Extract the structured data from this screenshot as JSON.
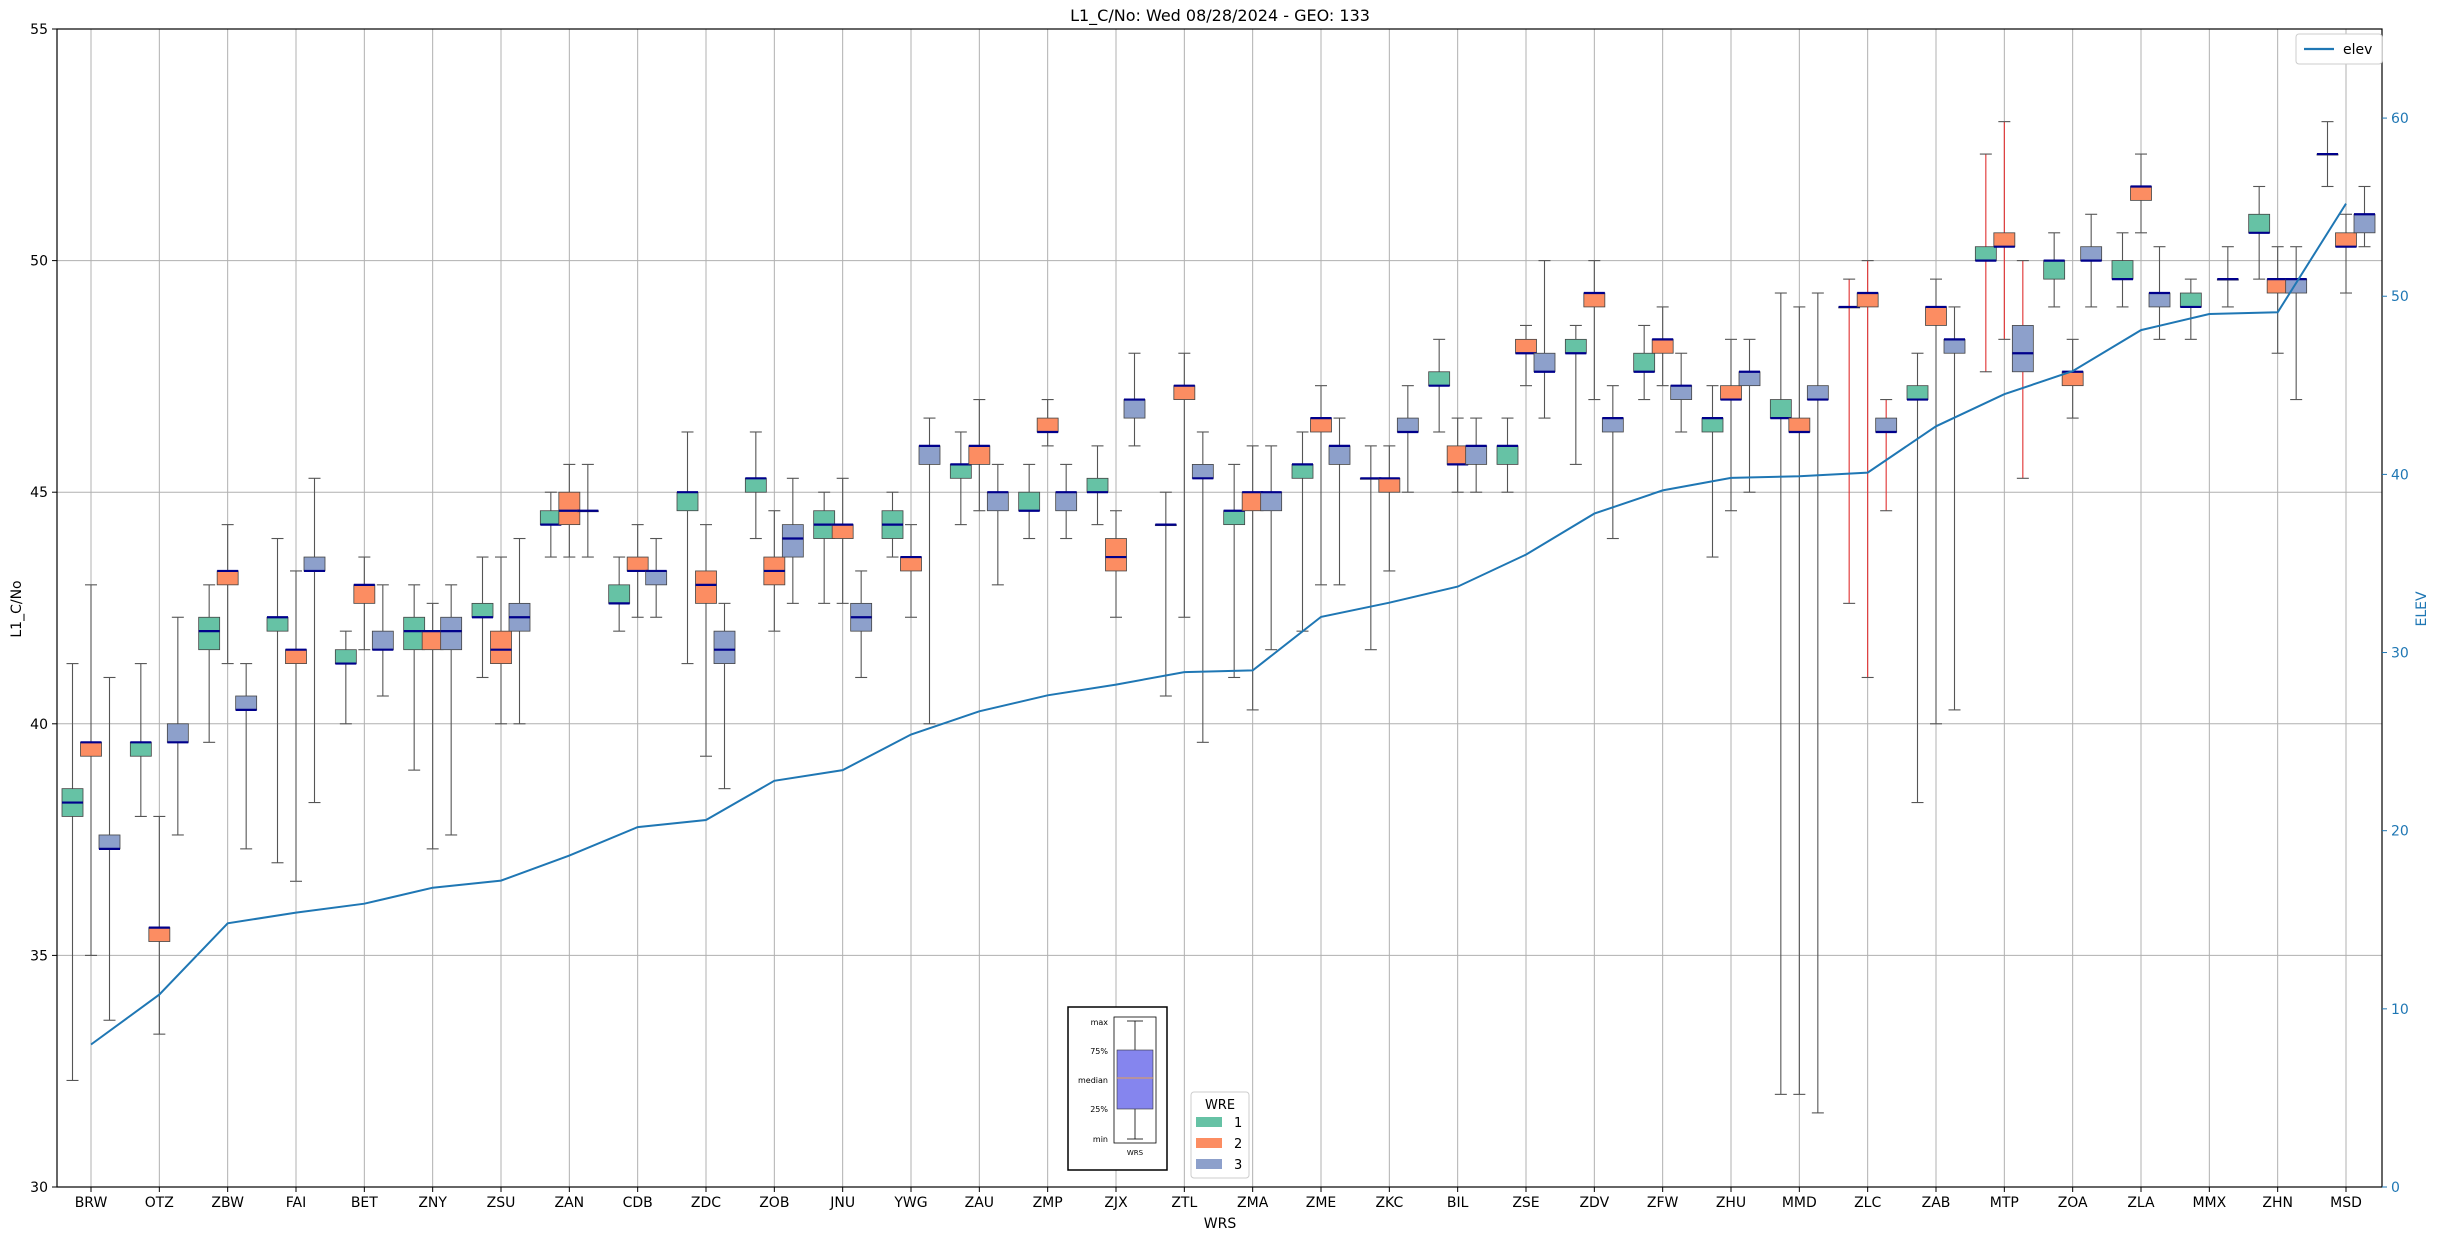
{
  "chart_data": {
    "type": "box",
    "title": "L1_C/No: Wed 08/28/2024 - GEO: 133",
    "xlabel": "WRS",
    "ylabel": "L1_C/No",
    "y2label": "ELEV",
    "ylim": [
      30,
      55
    ],
    "y2lim": [
      0,
      65
    ],
    "yticks": [
      30,
      35,
      40,
      45,
      50,
      55
    ],
    "y2ticks": [
      0,
      10,
      20,
      30,
      40,
      50,
      60
    ],
    "grid": true,
    "categories": [
      "BRW",
      "OTZ",
      "ZBW",
      "FAI",
      "BET",
      "ZNY",
      "ZSU",
      "ZAN",
      "CDB",
      "ZDC",
      "ZOB",
      "JNU",
      "YWG",
      "ZAU",
      "ZMP",
      "ZJX",
      "ZTL",
      "ZMA",
      "ZME",
      "ZKC",
      "BIL",
      "ZSE",
      "ZDV",
      "ZFW",
      "ZHU",
      "MMD",
      "ZLC",
      "ZAB",
      "MTP",
      "ZOA",
      "ZLA",
      "MMX",
      "ZHN",
      "MSD"
    ],
    "wre_colors": {
      "1": "#66c2a5",
      "2": "#fc8d62",
      "3": "#8da0cb"
    },
    "box_series": [
      {
        "wrs": "BRW",
        "wre": "1",
        "min": 32.3,
        "q1": 38.0,
        "median": 38.3,
        "q3": 38.6,
        "max": 41.3
      },
      {
        "wrs": "BRW",
        "wre": "2",
        "min": 35.0,
        "q1": 39.3,
        "median": 39.6,
        "q3": 39.6,
        "max": 43.0
      },
      {
        "wrs": "BRW",
        "wre": "3",
        "min": 33.6,
        "q1": 37.3,
        "median": 37.3,
        "q3": 37.6,
        "max": 41.0
      },
      {
        "wrs": "OTZ",
        "wre": "1",
        "min": 38.0,
        "q1": 39.3,
        "median": 39.6,
        "q3": 39.6,
        "max": 41.3
      },
      {
        "wrs": "OTZ",
        "wre": "2",
        "min": 33.3,
        "q1": 35.3,
        "median": 35.6,
        "q3": 35.6,
        "max": 38.0
      },
      {
        "wrs": "OTZ",
        "wre": "3",
        "min": 37.6,
        "q1": 39.6,
        "median": 39.6,
        "q3": 40.0,
        "max": 42.3
      },
      {
        "wrs": "ZBW",
        "wre": "1",
        "min": 39.6,
        "q1": 41.6,
        "median": 42.0,
        "q3": 42.3,
        "max": 43.0
      },
      {
        "wrs": "ZBW",
        "wre": "2",
        "min": 41.3,
        "q1": 43.0,
        "median": 43.3,
        "q3": 43.3,
        "max": 44.3
      },
      {
        "wrs": "ZBW",
        "wre": "3",
        "min": 37.3,
        "q1": 40.3,
        "median": 40.3,
        "q3": 40.6,
        "max": 41.3
      },
      {
        "wrs": "FAI",
        "wre": "1",
        "min": 37.0,
        "q1": 42.0,
        "median": 42.3,
        "q3": 42.3,
        "max": 44.0
      },
      {
        "wrs": "FAI",
        "wre": "2",
        "min": 36.6,
        "q1": 41.3,
        "median": 41.6,
        "q3": 41.6,
        "max": 43.3
      },
      {
        "wrs": "FAI",
        "wre": "3",
        "min": 38.3,
        "q1": 43.3,
        "median": 43.3,
        "q3": 43.6,
        "max": 45.3
      },
      {
        "wrs": "BET",
        "wre": "1",
        "min": 40.0,
        "q1": 41.3,
        "median": 41.3,
        "q3": 41.6,
        "max": 42.0
      },
      {
        "wrs": "BET",
        "wre": "2",
        "min": 41.6,
        "q1": 42.6,
        "median": 43.0,
        "q3": 43.0,
        "max": 43.6
      },
      {
        "wrs": "BET",
        "wre": "3",
        "min": 40.6,
        "q1": 41.6,
        "median": 41.6,
        "q3": 42.0,
        "max": 43.0
      },
      {
        "wrs": "ZNY",
        "wre": "1",
        "min": 39.0,
        "q1": 41.6,
        "median": 42.0,
        "q3": 42.3,
        "max": 43.0
      },
      {
        "wrs": "ZNY",
        "wre": "2",
        "min": 37.3,
        "q1": 41.6,
        "median": 42.0,
        "q3": 42.0,
        "max": 42.6
      },
      {
        "wrs": "ZNY",
        "wre": "3",
        "min": 37.6,
        "q1": 41.6,
        "median": 42.0,
        "q3": 42.3,
        "max": 43.0
      },
      {
        "wrs": "ZSU",
        "wre": "1",
        "min": 41.0,
        "q1": 42.3,
        "median": 42.3,
        "q3": 42.6,
        "max": 43.6
      },
      {
        "wrs": "ZSU",
        "wre": "2",
        "min": 40.0,
        "q1": 41.3,
        "median": 41.6,
        "q3": 42.0,
        "max": 43.6
      },
      {
        "wrs": "ZSU",
        "wre": "3",
        "min": 40.0,
        "q1": 42.0,
        "median": 42.3,
        "q3": 42.6,
        "max": 44.0
      },
      {
        "wrs": "ZAN",
        "wre": "1",
        "min": 43.6,
        "q1": 44.3,
        "median": 44.3,
        "q3": 44.6,
        "max": 45.0
      },
      {
        "wrs": "ZAN",
        "wre": "2",
        "min": 43.6,
        "q1": 44.3,
        "median": 44.6,
        "q3": 45.0,
        "max": 45.6
      },
      {
        "wrs": "ZAN",
        "wre": "3",
        "min": 43.6,
        "q1": 44.6,
        "median": 44.6,
        "q3": 44.6,
        "max": 45.6
      },
      {
        "wrs": "CDB",
        "wre": "1",
        "min": 42.0,
        "q1": 42.6,
        "median": 42.6,
        "q3": 43.0,
        "max": 43.6
      },
      {
        "wrs": "CDB",
        "wre": "2",
        "min": 42.3,
        "q1": 43.3,
        "median": 43.3,
        "q3": 43.6,
        "max": 44.3
      },
      {
        "wrs": "CDB",
        "wre": "3",
        "min": 42.3,
        "q1": 43.0,
        "median": 43.3,
        "q3": 43.3,
        "max": 44.0
      },
      {
        "wrs": "ZDC",
        "wre": "1",
        "min": 41.3,
        "q1": 44.6,
        "median": 45.0,
        "q3": 45.0,
        "max": 46.3
      },
      {
        "wrs": "ZDC",
        "wre": "2",
        "min": 39.3,
        "q1": 42.6,
        "median": 43.0,
        "q3": 43.3,
        "max": 44.3
      },
      {
        "wrs": "ZDC",
        "wre": "3",
        "min": 38.6,
        "q1": 41.3,
        "median": 41.6,
        "q3": 42.0,
        "max": 42.6
      },
      {
        "wrs": "ZOB",
        "wre": "1",
        "min": 44.0,
        "q1": 45.0,
        "median": 45.3,
        "q3": 45.3,
        "max": 46.3
      },
      {
        "wrs": "ZOB",
        "wre": "2",
        "min": 42.0,
        "q1": 43.0,
        "median": 43.3,
        "q3": 43.6,
        "max": 44.6
      },
      {
        "wrs": "ZOB",
        "wre": "3",
        "min": 42.6,
        "q1": 43.6,
        "median": 44.0,
        "q3": 44.3,
        "max": 45.3
      },
      {
        "wrs": "JNU",
        "wre": "1",
        "min": 42.6,
        "q1": 44.0,
        "median": 44.3,
        "q3": 44.6,
        "max": 45.0
      },
      {
        "wrs": "JNU",
        "wre": "2",
        "min": 42.6,
        "q1": 44.0,
        "median": 44.3,
        "q3": 44.3,
        "max": 45.3
      },
      {
        "wrs": "JNU",
        "wre": "3",
        "min": 41.0,
        "q1": 42.0,
        "median": 42.3,
        "q3": 42.6,
        "max": 43.3
      },
      {
        "wrs": "YWG",
        "wre": "1",
        "min": 43.6,
        "q1": 44.0,
        "median": 44.3,
        "q3": 44.6,
        "max": 45.0
      },
      {
        "wrs": "YWG",
        "wre": "2",
        "min": 42.3,
        "q1": 43.3,
        "median": 43.6,
        "q3": 43.6,
        "max": 44.3
      },
      {
        "wrs": "YWG",
        "wre": "3",
        "min": 40.0,
        "q1": 45.6,
        "median": 46.0,
        "q3": 46.0,
        "max": 46.6
      },
      {
        "wrs": "ZAU",
        "wre": "1",
        "min": 44.3,
        "q1": 45.3,
        "median": 45.6,
        "q3": 45.6,
        "max": 46.3
      },
      {
        "wrs": "ZAU",
        "wre": "2",
        "min": 44.6,
        "q1": 45.6,
        "median": 46.0,
        "q3": 46.0,
        "max": 47.0
      },
      {
        "wrs": "ZAU",
        "wre": "3",
        "min": 43.0,
        "q1": 44.6,
        "median": 45.0,
        "q3": 45.0,
        "max": 45.6
      },
      {
        "wrs": "ZMP",
        "wre": "1",
        "min": 44.0,
        "q1": 44.6,
        "median": 44.6,
        "q3": 45.0,
        "max": 45.6
      },
      {
        "wrs": "ZMP",
        "wre": "2",
        "min": 46.0,
        "q1": 46.3,
        "median": 46.3,
        "q3": 46.6,
        "max": 47.0
      },
      {
        "wrs": "ZMP",
        "wre": "3",
        "min": 44.0,
        "q1": 44.6,
        "median": 45.0,
        "q3": 45.0,
        "max": 45.6
      },
      {
        "wrs": "ZJX",
        "wre": "1",
        "min": 44.3,
        "q1": 45.0,
        "median": 45.0,
        "q3": 45.3,
        "max": 46.0
      },
      {
        "wrs": "ZJX",
        "wre": "2",
        "min": 42.3,
        "q1": 43.3,
        "median": 43.6,
        "q3": 44.0,
        "max": 44.6
      },
      {
        "wrs": "ZJX",
        "wre": "3",
        "min": 46.0,
        "q1": 46.6,
        "median": 47.0,
        "q3": 47.0,
        "max": 48.0
      },
      {
        "wrs": "ZTL",
        "wre": "1",
        "min": 40.6,
        "q1": 44.3,
        "median": 44.3,
        "q3": 44.3,
        "max": 45.0
      },
      {
        "wrs": "ZTL",
        "wre": "2",
        "min": 42.3,
        "q1": 47.0,
        "median": 47.3,
        "q3": 47.3,
        "max": 48.0
      },
      {
        "wrs": "ZTL",
        "wre": "3",
        "min": 39.6,
        "q1": 45.3,
        "median": 45.3,
        "q3": 45.6,
        "max": 46.3
      },
      {
        "wrs": "ZMA",
        "wre": "1",
        "min": 41.0,
        "q1": 44.3,
        "median": 44.6,
        "q3": 44.6,
        "max": 45.6
      },
      {
        "wrs": "ZMA",
        "wre": "2",
        "min": 40.3,
        "q1": 44.6,
        "median": 45.0,
        "q3": 45.0,
        "max": 46.0
      },
      {
        "wrs": "ZMA",
        "wre": "3",
        "min": 41.6,
        "q1": 44.6,
        "median": 45.0,
        "q3": 45.0,
        "max": 46.0
      },
      {
        "wrs": "ZME",
        "wre": "1",
        "min": 42.0,
        "q1": 45.3,
        "median": 45.6,
        "q3": 45.6,
        "max": 46.3
      },
      {
        "wrs": "ZME",
        "wre": "2",
        "min": 43.0,
        "q1": 46.3,
        "median": 46.6,
        "q3": 46.6,
        "max": 47.3
      },
      {
        "wrs": "ZME",
        "wre": "3",
        "min": 43.0,
        "q1": 45.6,
        "median": 46.0,
        "q3": 46.0,
        "max": 46.6
      },
      {
        "wrs": "ZKC",
        "wre": "1",
        "min": 41.6,
        "q1": 45.3,
        "median": 45.3,
        "q3": 45.3,
        "max": 46.0
      },
      {
        "wrs": "ZKC",
        "wre": "2",
        "min": 43.3,
        "q1": 45.0,
        "median": 45.3,
        "q3": 45.3,
        "max": 46.0
      },
      {
        "wrs": "ZKC",
        "wre": "3",
        "min": 45.0,
        "q1": 46.3,
        "median": 46.3,
        "q3": 46.6,
        "max": 47.3
      },
      {
        "wrs": "BIL",
        "wre": "1",
        "min": 46.3,
        "q1": 47.3,
        "median": 47.3,
        "q3": 47.6,
        "max": 48.3
      },
      {
        "wrs": "BIL",
        "wre": "2",
        "min": 45.0,
        "q1": 45.6,
        "median": 45.6,
        "q3": 46.0,
        "max": 46.6
      },
      {
        "wrs": "BIL",
        "wre": "3",
        "min": 45.0,
        "q1": 45.6,
        "median": 46.0,
        "q3": 46.0,
        "max": 46.6
      },
      {
        "wrs": "ZSE",
        "wre": "1",
        "min": 45.0,
        "q1": 45.6,
        "median": 46.0,
        "q3": 46.0,
        "max": 46.6
      },
      {
        "wrs": "ZSE",
        "wre": "2",
        "min": 47.3,
        "q1": 48.0,
        "median": 48.0,
        "q3": 48.3,
        "max": 48.6
      },
      {
        "wrs": "ZSE",
        "wre": "3",
        "min": 46.6,
        "q1": 47.6,
        "median": 47.6,
        "q3": 48.0,
        "max": 50.0
      },
      {
        "wrs": "ZDV",
        "wre": "1",
        "min": 45.6,
        "q1": 48.0,
        "median": 48.0,
        "q3": 48.3,
        "max": 48.6
      },
      {
        "wrs": "ZDV",
        "wre": "2",
        "min": 47.0,
        "q1": 49.0,
        "median": 49.3,
        "q3": 49.3,
        "max": 50.0
      },
      {
        "wrs": "ZDV",
        "wre": "3",
        "min": 44.0,
        "q1": 46.3,
        "median": 46.6,
        "q3": 46.6,
        "max": 47.3
      },
      {
        "wrs": "ZFW",
        "wre": "1",
        "min": 47.0,
        "q1": 47.6,
        "median": 47.6,
        "q3": 48.0,
        "max": 48.6
      },
      {
        "wrs": "ZFW",
        "wre": "2",
        "min": 47.3,
        "q1": 48.0,
        "median": 48.3,
        "q3": 48.3,
        "max": 49.0
      },
      {
        "wrs": "ZFW",
        "wre": "3",
        "min": 46.3,
        "q1": 47.0,
        "median": 47.3,
        "q3": 47.3,
        "max": 48.0
      },
      {
        "wrs": "ZHU",
        "wre": "1",
        "min": 43.6,
        "q1": 46.3,
        "median": 46.6,
        "q3": 46.6,
        "max": 47.3
      },
      {
        "wrs": "ZHU",
        "wre": "2",
        "min": 44.6,
        "q1": 47.0,
        "median": 47.0,
        "q3": 47.3,
        "max": 48.3
      },
      {
        "wrs": "ZHU",
        "wre": "3",
        "min": 45.0,
        "q1": 47.3,
        "median": 47.6,
        "q3": 47.6,
        "max": 48.3
      },
      {
        "wrs": "MMD",
        "wre": "1",
        "min": 32.0,
        "q1": 46.6,
        "median": 46.6,
        "q3": 47.0,
        "max": 49.3
      },
      {
        "wrs": "MMD",
        "wre": "2",
        "min": 32.0,
        "q1": 46.3,
        "median": 46.3,
        "q3": 46.6,
        "max": 49.0
      },
      {
        "wrs": "MMD",
        "wre": "3",
        "min": 31.6,
        "q1": 47.0,
        "median": 47.0,
        "q3": 47.3,
        "max": 49.3
      },
      {
        "wrs": "ZLC",
        "wre": "1",
        "min": 42.6,
        "q1": 49.0,
        "median": 49.0,
        "q3": 49.0,
        "max": 49.6
      },
      {
        "wrs": "ZLC",
        "wre": "2",
        "min": 41.0,
        "q1": 49.0,
        "median": 49.3,
        "q3": 49.3,
        "max": 50.0
      },
      {
        "wrs": "ZLC",
        "wre": "3",
        "min": 44.6,
        "q1": 46.3,
        "median": 46.3,
        "q3": 46.6,
        "max": 47.0
      },
      {
        "wrs": "ZAB",
        "wre": "1",
        "min": 38.3,
        "q1": 47.0,
        "median": 47.0,
        "q3": 47.3,
        "max": 48.0
      },
      {
        "wrs": "ZAB",
        "wre": "2",
        "min": 40.0,
        "q1": 48.6,
        "median": 49.0,
        "q3": 49.0,
        "max": 49.6
      },
      {
        "wrs": "ZAB",
        "wre": "3",
        "min": 40.3,
        "q1": 48.0,
        "median": 48.3,
        "q3": 48.3,
        "max": 49.0
      },
      {
        "wrs": "MTP",
        "wre": "1",
        "min": 47.6,
        "q1": 50.0,
        "median": 50.0,
        "q3": 50.3,
        "max": 52.3
      },
      {
        "wrs": "MTP",
        "wre": "2",
        "min": 48.3,
        "q1": 50.3,
        "median": 50.3,
        "q3": 50.6,
        "max": 53.0
      },
      {
        "wrs": "MTP",
        "wre": "3",
        "min": 45.3,
        "q1": 47.6,
        "median": 48.0,
        "q3": 48.6,
        "max": 50.0
      },
      {
        "wrs": "ZOA",
        "wre": "1",
        "min": 49.0,
        "q1": 49.6,
        "median": 50.0,
        "q3": 50.0,
        "max": 50.6
      },
      {
        "wrs": "ZOA",
        "wre": "2",
        "min": 46.6,
        "q1": 47.3,
        "median": 47.6,
        "q3": 47.6,
        "max": 48.3
      },
      {
        "wrs": "ZOA",
        "wre": "3",
        "min": 49.0,
        "q1": 50.0,
        "median": 50.0,
        "q3": 50.3,
        "max": 51.0
      },
      {
        "wrs": "ZLA",
        "wre": "1",
        "min": 49.0,
        "q1": 49.6,
        "median": 49.6,
        "q3": 50.0,
        "max": 50.6
      },
      {
        "wrs": "ZLA",
        "wre": "2",
        "min": 50.6,
        "q1": 51.3,
        "median": 51.6,
        "q3": 51.6,
        "max": 52.3
      },
      {
        "wrs": "ZLA",
        "wre": "3",
        "min": 48.3,
        "q1": 49.0,
        "median": 49.3,
        "q3": 49.3,
        "max": 50.3
      },
      {
        "wrs": "MMX",
        "wre": "1",
        "min": 48.3,
        "q1": 49.0,
        "median": 49.0,
        "q3": 49.3,
        "max": 49.6
      },
      {
        "wrs": "MMX",
        "wre": "3",
        "min": 49.0,
        "q1": 49.6,
        "median": 49.6,
        "q3": 49.6,
        "max": 50.3
      },
      {
        "wrs": "ZHN",
        "wre": "1",
        "min": 49.6,
        "q1": 50.6,
        "median": 50.6,
        "q3": 51.0,
        "max": 51.6
      },
      {
        "wrs": "ZHN",
        "wre": "2",
        "min": 48.0,
        "q1": 49.3,
        "median": 49.6,
        "q3": 49.6,
        "max": 50.3
      },
      {
        "wrs": "ZHN",
        "wre": "3",
        "min": 47.0,
        "q1": 49.3,
        "median": 49.6,
        "q3": 49.6,
        "max": 50.3
      },
      {
        "wrs": "MSD",
        "wre": "1",
        "min": 51.6,
        "q1": 52.3,
        "median": 52.3,
        "q3": 52.3,
        "max": 53.0
      },
      {
        "wrs": "MSD",
        "wre": "2",
        "min": 49.3,
        "q1": 50.3,
        "median": 50.3,
        "q3": 50.6,
        "max": 51.0
      },
      {
        "wrs": "MSD",
        "wre": "3",
        "min": 50.3,
        "q1": 50.6,
        "median": 51.0,
        "q3": 51.0,
        "max": 51.6
      }
    ],
    "red_whisker_wrs": [
      "ZLC",
      "MTP"
    ],
    "elev_series": {
      "name": "elev",
      "color": "#1f77b4",
      "axis": "right",
      "values": [
        8.0,
        10.8,
        14.8,
        15.4,
        15.9,
        16.8,
        17.2,
        18.6,
        20.2,
        20.6,
        22.8,
        23.4,
        25.4,
        26.7,
        27.6,
        28.2,
        28.9,
        29.0,
        32.0,
        32.8,
        33.7,
        35.5,
        37.8,
        39.1,
        39.8,
        39.9,
        40.1,
        42.7,
        44.5,
        45.8,
        48.1,
        49.0,
        49.1,
        55.2
      ]
    },
    "legend_elev": {
      "label": "elev",
      "position": "top-right"
    },
    "legend_wre": {
      "title": "WRE",
      "entries": [
        "1",
        "2",
        "3"
      ]
    },
    "key_box": {
      "labels": [
        "max",
        "75%",
        "median",
        "25%",
        "min"
      ],
      "xlabel": "WRS"
    }
  }
}
